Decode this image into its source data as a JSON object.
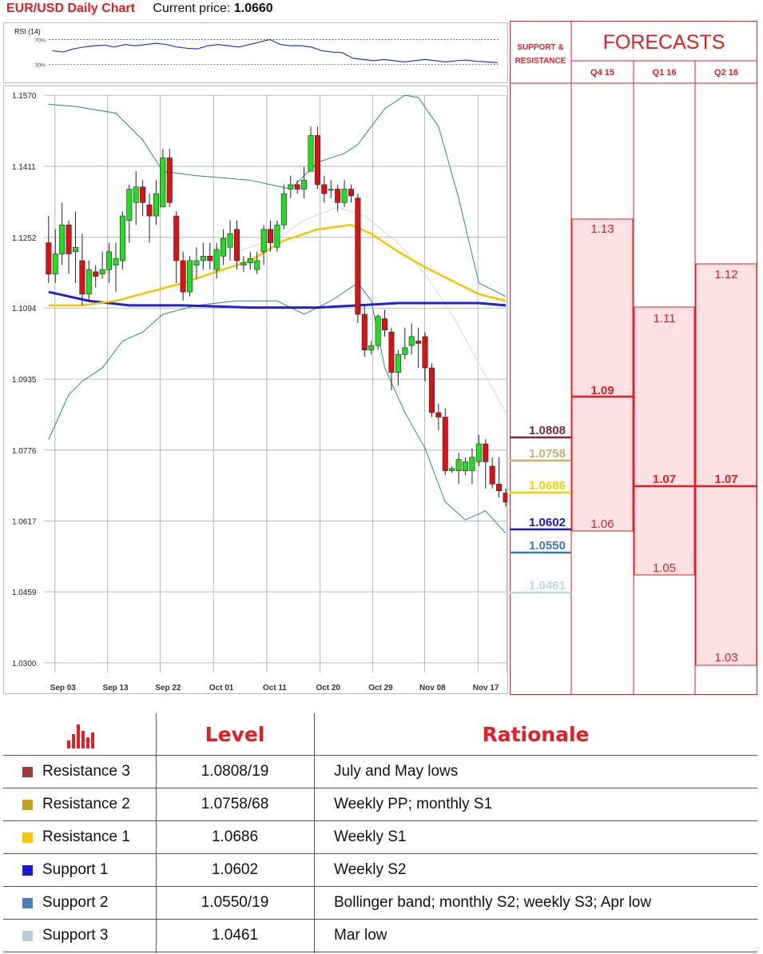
{
  "header": {
    "title": "EUR/USD Daily Chart",
    "price_label": "Current price:",
    "price_value": "1.0660"
  },
  "chart_data": {
    "type": "candlestick",
    "title": "EUR/USD Daily Chart",
    "current_price": 1.066,
    "ylim": [
      1.03,
      1.157
    ],
    "yticks": [
      "1.1570",
      "1.1411",
      "1.1252",
      "1.1094",
      "1.0935",
      "1.0776",
      "1.0617",
      "1.0459",
      "1.0300"
    ],
    "xticks": [
      "Sep 03",
      "Sep 13",
      "Sep 22",
      "Oct 01",
      "Oct 11",
      "Oct 20",
      "Oct 29",
      "Nov 08",
      "Nov 17"
    ],
    "candles": [
      [
        1.124,
        1.117,
        1.13,
        1.115
      ],
      [
        1.117,
        1.1215,
        1.127,
        1.115
      ],
      [
        1.1215,
        1.128,
        1.133,
        1.119
      ],
      [
        1.128,
        1.1215,
        1.129,
        1.117
      ],
      [
        1.122,
        1.123,
        1.131,
        1.115
      ],
      [
        1.12,
        1.1125,
        1.126,
        1.11
      ],
      [
        1.1125,
        1.118,
        1.12,
        1.111
      ],
      [
        1.1175,
        1.1165,
        1.119,
        1.114
      ],
      [
        1.117,
        1.118,
        1.122,
        1.116
      ],
      [
        1.118,
        1.122,
        1.124,
        1.115
      ],
      [
        1.119,
        1.1205,
        1.124,
        1.113
      ],
      [
        1.12,
        1.13,
        1.131,
        1.118
      ],
      [
        1.129,
        1.136,
        1.137,
        1.124
      ],
      [
        1.133,
        1.1365,
        1.14,
        1.128
      ],
      [
        1.1365,
        1.133,
        1.138,
        1.13
      ],
      [
        1.1325,
        1.13,
        1.135,
        1.124
      ],
      [
        1.13,
        1.135,
        1.138,
        1.128
      ],
      [
        1.132,
        1.143,
        1.145,
        1.132
      ],
      [
        1.143,
        1.133,
        1.145,
        1.132
      ],
      [
        1.13,
        1.12,
        1.131,
        1.115
      ],
      [
        1.12,
        1.113,
        1.122,
        1.111
      ],
      [
        1.113,
        1.12,
        1.121,
        1.112
      ],
      [
        1.119,
        1.12,
        1.123,
        1.116
      ],
      [
        1.12,
        1.121,
        1.124,
        1.118
      ],
      [
        1.121,
        1.12,
        1.124,
        1.118
      ],
      [
        1.118,
        1.1225,
        1.124,
        1.116
      ],
      [
        1.121,
        1.125,
        1.127,
        1.119
      ],
      [
        1.123,
        1.126,
        1.129,
        1.12
      ],
      [
        1.127,
        1.12,
        1.129,
        1.118
      ],
      [
        1.119,
        1.1195,
        1.121,
        1.1175
      ],
      [
        1.1195,
        1.1205,
        1.122,
        1.118
      ],
      [
        1.118,
        1.12,
        1.122,
        1.117
      ],
      [
        1.122,
        1.127,
        1.128,
        1.119
      ],
      [
        1.127,
        1.124,
        1.129,
        1.122
      ],
      [
        1.123,
        1.128,
        1.129,
        1.122
      ],
      [
        1.128,
        1.135,
        1.137,
        1.127
      ],
      [
        1.136,
        1.137,
        1.139,
        1.134
      ],
      [
        1.137,
        1.136,
        1.138,
        1.135
      ],
      [
        1.136,
        1.138,
        1.141,
        1.134
      ],
      [
        1.14,
        1.148,
        1.15,
        1.14
      ],
      [
        1.148,
        1.137,
        1.15,
        1.136
      ],
      [
        1.137,
        1.135,
        1.139,
        1.133
      ],
      [
        1.136,
        1.136,
        1.138,
        1.134
      ],
      [
        1.136,
        1.133,
        1.137,
        1.131
      ],
      [
        1.133,
        1.136,
        1.138,
        1.132
      ],
      [
        1.136,
        1.1345,
        1.137,
        1.133
      ],
      [
        1.134,
        1.108,
        1.135,
        1.106
      ],
      [
        1.108,
        1.1,
        1.11,
        1.0985
      ],
      [
        1.1,
        1.101,
        1.102,
        1.099
      ],
      [
        1.101,
        1.1075,
        1.108,
        1.1
      ],
      [
        1.107,
        1.1045,
        1.109,
        1.103
      ],
      [
        1.104,
        1.095,
        1.105,
        1.091
      ],
      [
        1.095,
        1.099,
        1.1,
        1.092
      ],
      [
        1.099,
        1.1005,
        1.105,
        1.098
      ],
      [
        1.101,
        1.103,
        1.106,
        1.099
      ],
      [
        1.102,
        1.1015,
        1.105,
        1.096
      ],
      [
        1.103,
        1.096,
        1.104,
        1.093
      ],
      [
        1.096,
        1.086,
        1.097,
        1.085
      ],
      [
        1.086,
        1.085,
        1.088,
        1.082
      ],
      [
        1.085,
        1.073,
        1.087,
        1.072
      ],
      [
        1.073,
        1.0735,
        1.074,
        1.0725
      ],
      [
        1.073,
        1.0755,
        1.077,
        1.07
      ],
      [
        1.073,
        1.075,
        1.076,
        1.072
      ],
      [
        1.073,
        1.076,
        1.078,
        1.07
      ],
      [
        1.075,
        1.079,
        1.081,
        1.074
      ],
      [
        1.079,
        1.075,
        1.08,
        1.069
      ],
      [
        1.074,
        1.07,
        1.076,
        1.069
      ],
      [
        1.07,
        1.0685,
        1.076,
        1.067
      ],
      [
        1.068,
        1.066,
        1.069,
        1.065
      ]
    ],
    "ma_yellow": [
      [
        0,
        1.11
      ],
      [
        5,
        1.11
      ],
      [
        10,
        1.111
      ],
      [
        15,
        1.113
      ],
      [
        20,
        1.115
      ],
      [
        25,
        1.1175
      ],
      [
        30,
        1.12
      ],
      [
        35,
        1.1245
      ],
      [
        40,
        1.127
      ],
      [
        45,
        1.128
      ],
      [
        48,
        1.126
      ],
      [
        52,
        1.122
      ],
      [
        56,
        1.1185
      ],
      [
        60,
        1.1155
      ],
      [
        64,
        1.1125
      ],
      [
        68,
        1.111
      ]
    ],
    "ma_blue": [
      [
        0,
        1.113
      ],
      [
        6,
        1.111
      ],
      [
        12,
        1.11
      ],
      [
        20,
        1.11
      ],
      [
        30,
        1.1095
      ],
      [
        40,
        1.1095
      ],
      [
        46,
        1.11
      ],
      [
        52,
        1.1105
      ],
      [
        58,
        1.1105
      ],
      [
        64,
        1.1105
      ],
      [
        68,
        1.11
      ]
    ],
    "ma_light": [
      [
        28,
        1.122
      ],
      [
        34,
        1.125
      ],
      [
        38,
        1.129
      ],
      [
        43,
        1.132
      ],
      [
        47,
        1.13
      ],
      [
        52,
        1.124
      ],
      [
        56,
        1.117
      ],
      [
        60,
        1.108
      ],
      [
        64,
        1.097
      ],
      [
        68,
        1.086
      ]
    ],
    "bb_upper": [
      [
        0,
        1.155
      ],
      [
        4,
        1.1545
      ],
      [
        10,
        1.153
      ],
      [
        14,
        1.147
      ],
      [
        17,
        1.14
      ],
      [
        22,
        1.139
      ],
      [
        30,
        1.138
      ],
      [
        36,
        1.136
      ],
      [
        40,
        1.142
      ],
      [
        44,
        1.144
      ],
      [
        46,
        1.146
      ],
      [
        50,
        1.154
      ],
      [
        53,
        1.157
      ],
      [
        55,
        1.1565
      ],
      [
        58,
        1.15
      ],
      [
        61,
        1.134
      ],
      [
        64,
        1.115
      ],
      [
        68,
        1.112
      ]
    ],
    "bb_lower": [
      [
        0,
        1.08
      ],
      [
        3,
        1.09
      ],
      [
        5,
        1.093
      ],
      [
        8,
        1.096
      ],
      [
        11,
        1.102
      ],
      [
        14,
        1.104
      ],
      [
        17,
        1.108
      ],
      [
        22,
        1.11
      ],
      [
        28,
        1.111
      ],
      [
        34,
        1.111
      ],
      [
        38,
        1.108
      ],
      [
        42,
        1.111
      ],
      [
        46,
        1.115
      ],
      [
        48,
        1.111
      ],
      [
        50,
        1.096
      ],
      [
        53,
        1.086
      ],
      [
        56,
        1.078
      ],
      [
        59,
        1.066
      ],
      [
        62,
        1.062
      ],
      [
        65,
        1.064
      ],
      [
        68,
        1.059
      ]
    ],
    "rsi": {
      "label": "RSI (14)",
      "levels": [
        "70%",
        "30%"
      ],
      "values": [
        52,
        50,
        55,
        58,
        60,
        61,
        58,
        62,
        60,
        62,
        64,
        62,
        58,
        56,
        55,
        60,
        62,
        60,
        58,
        62,
        66,
        70,
        62,
        60,
        60,
        58,
        52,
        50,
        49,
        40,
        38,
        36,
        38,
        36,
        34,
        36,
        38,
        36,
        34,
        36,
        37,
        35,
        34,
        33
      ]
    }
  },
  "forecast": {
    "sr_label": "SUPPORT & RESISTANCE",
    "title": "FORECASTS",
    "columns": [
      "Q4 15",
      "Q1 16",
      "Q2 16"
    ],
    "q4": {
      "high": "1.13",
      "mid": "1.09",
      "low": "1.06"
    },
    "q1": {
      "high": "1.11",
      "mid": "1.07",
      "low": "1.05"
    },
    "q2": {
      "high": "1.12",
      "mid": "1.07",
      "low": "1.03"
    },
    "sr_levels": [
      {
        "value": "1.0808",
        "color": "#7a2a3a"
      },
      {
        "value": "1.0758",
        "color": "#c8b070"
      },
      {
        "value": "1.0686",
        "color": "#f2d000"
      },
      {
        "value": "1.0602",
        "color": "#1a1acc"
      },
      {
        "value": "1.0550",
        "color": "#3a7ab0"
      },
      {
        "value": "1.0461",
        "color": "#b8d8e0"
      }
    ]
  },
  "levels_table": {
    "headers": {
      "level": "Level",
      "rationale": "Rationale"
    },
    "rows": [
      {
        "name": "Resistance 3",
        "level": "1.0808/19",
        "rationale": "July and May lows",
        "color": "#9e3a3a"
      },
      {
        "name": "Resistance 2",
        "level": "1.0758/68",
        "rationale": "Weekly PP; monthly S1",
        "color": "#c8a020"
      },
      {
        "name": "Resistance 1",
        "level": "1.0686",
        "rationale": "Weekly S1",
        "color": "#f5c800"
      },
      {
        "name": "Support 1",
        "level": "1.0602",
        "rationale": "Weekly S2",
        "color": "#1a1acc"
      },
      {
        "name": "Support 2",
        "level": "1.0550/19",
        "rationale": "Bollinger band; monthly S2; weekly S3; Apr low",
        "color": "#4a80b8"
      },
      {
        "name": "Support 3",
        "level": "1.0461",
        "rationale": "Mar low",
        "color": "#b8cce0"
      }
    ]
  }
}
